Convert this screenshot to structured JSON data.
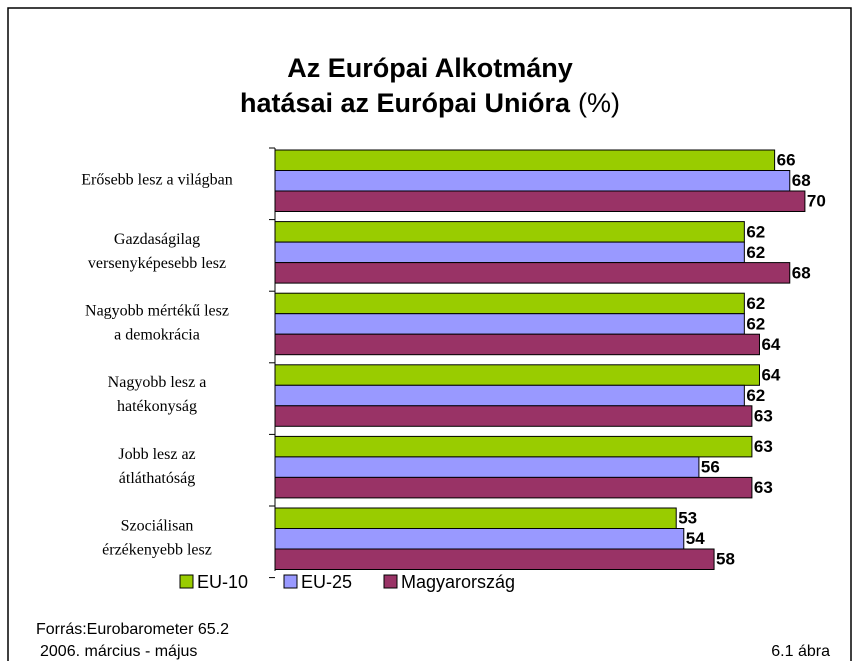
{
  "chart_data": {
    "type": "bar",
    "orientation": "horizontal",
    "title": [
      "Az Európai Alkotmány",
      "hatásai az Európai Unióra"
    ],
    "title_unit": "(%)",
    "categories": [
      [
        "Erősebb lesz a világban"
      ],
      [
        "Gazdaságilag",
        "versenyképesebb lesz"
      ],
      [
        "Nagyobb mértékű lesz",
        "a demokrácia"
      ],
      [
        "Nagyobb lesz a",
        "hatékonyság"
      ],
      [
        "Jobb lesz az",
        "átláthatóság"
      ],
      [
        "Szociálisan",
        "érzékenyebb lesz"
      ]
    ],
    "series": [
      {
        "name": "EU-10",
        "color": "#99cc00",
        "values": [
          66,
          62,
          62,
          64,
          63,
          53
        ]
      },
      {
        "name": "EU-25",
        "color": "#9999ff",
        "values": [
          68,
          62,
          62,
          62,
          56,
          54
        ]
      },
      {
        "name": "Magyarország",
        "color": "#993366",
        "values": [
          70,
          68,
          64,
          63,
          63,
          58
        ]
      }
    ],
    "footer": {
      "source": "Forrás:Eurobarometer 65.2",
      "period": "2006. március - május",
      "figure": "6.1 ábra"
    }
  }
}
